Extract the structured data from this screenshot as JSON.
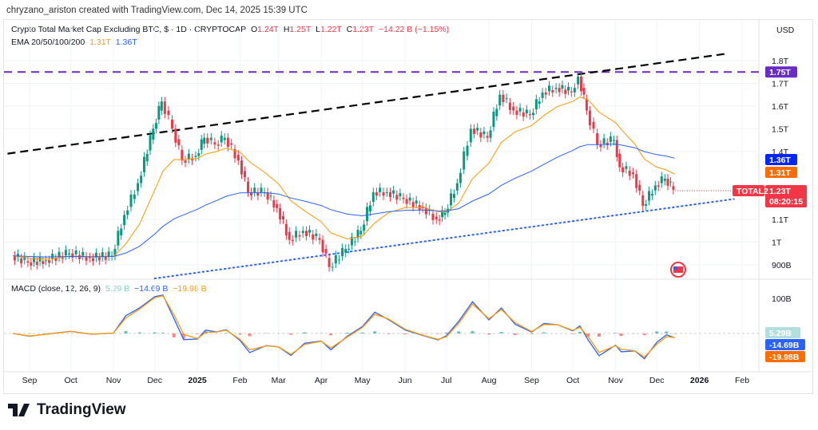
{
  "credit": "chryzano_ariston created with TradingView.com, Dec 14, 2025 15:39 UTC",
  "legend": {
    "symbol": "Crypto Total Market Cap Excluding BTC, $ · 1D · CRYPTOCAP",
    "o_label": "O",
    "o": "1.24T",
    "h_label": "H",
    "h": "1.25T",
    "l_label": "L",
    "l": "1.22T",
    "c_label": "C",
    "c": "1.23T",
    "change": "−14.22 B (−1.15%)",
    "ema_label": "EMA 20/50/100/200",
    "ema1": "1.31T",
    "ema2": "1.36T"
  },
  "macd_legend": {
    "label": "MACD (close, 12, 26, 9)",
    "hist": "5.29 B",
    "macd": "−14.69 B",
    "signal": "−19.98 B"
  },
  "currency": "USD",
  "logo": "TradingView",
  "colors": {
    "up": "#089981",
    "down": "#f23645",
    "ema_short": "#ff9800",
    "ema_long": "#2962ff",
    "resistance": "#6a2cc7",
    "trend_upper": "#000000",
    "trend_lower": "#2962ff"
  },
  "chart_data": [
    {
      "type": "candlestick",
      "symbol": "TOTAL2",
      "scale": "linear",
      "ylim_T": [
        0.85,
        1.85
      ],
      "y_ticks": [
        "1.8T",
        "1.7T",
        "1.6T",
        "1.5T",
        "1.4T",
        "1.1T",
        "1T",
        "900B"
      ],
      "y_tick_values": [
        1.8,
        1.7,
        1.6,
        1.5,
        1.4,
        1.1,
        1.0,
        0.9
      ],
      "x_ticks": [
        "Sep",
        "Oct",
        "Nov",
        "Dec",
        "2025",
        "Feb",
        "Mar",
        "Apr",
        "May",
        "Jun",
        "Jul",
        "Aug",
        "Sep",
        "Oct",
        "Nov",
        "Dec",
        "2026",
        "Feb"
      ],
      "x_tick_dates": [
        "2024-09-01",
        "2024-10-01",
        "2024-11-01",
        "2024-12-01",
        "2025-01-01",
        "2025-02-01",
        "2025-03-01",
        "2025-04-01",
        "2025-05-01",
        "2025-06-01",
        "2025-07-01",
        "2025-08-01",
        "2025-09-01",
        "2025-10-01",
        "2025-11-01",
        "2025-12-01",
        "2026-01-01",
        "2026-02-01"
      ],
      "closes_T": [
        [
          "2024-08-20",
          0.94
        ],
        [
          "2024-09-01",
          0.91
        ],
        [
          "2024-09-14",
          0.92
        ],
        [
          "2024-10-01",
          0.95
        ],
        [
          "2024-10-16",
          0.93
        ],
        [
          "2024-11-01",
          0.94
        ],
        [
          "2024-11-10",
          1.12
        ],
        [
          "2024-11-20",
          1.26
        ],
        [
          "2024-12-01",
          1.5
        ],
        [
          "2024-12-07",
          1.62
        ],
        [
          "2024-12-15",
          1.5
        ],
        [
          "2024-12-22",
          1.36
        ],
        [
          "2025-01-01",
          1.38
        ],
        [
          "2025-01-07",
          1.46
        ],
        [
          "2025-01-15",
          1.43
        ],
        [
          "2025-01-22",
          1.46
        ],
        [
          "2025-02-01",
          1.36
        ],
        [
          "2025-02-08",
          1.22
        ],
        [
          "2025-02-20",
          1.22
        ],
        [
          "2025-03-01",
          1.15
        ],
        [
          "2025-03-10",
          1.01
        ],
        [
          "2025-03-20",
          1.05
        ],
        [
          "2025-04-01",
          1.01
        ],
        [
          "2025-04-08",
          0.89
        ],
        [
          "2025-04-20",
          0.97
        ],
        [
          "2025-05-01",
          1.05
        ],
        [
          "2025-05-10",
          1.22
        ],
        [
          "2025-05-20",
          1.22
        ],
        [
          "2025-06-01",
          1.19
        ],
        [
          "2025-06-15",
          1.15
        ],
        [
          "2025-06-25",
          1.1
        ],
        [
          "2025-07-01",
          1.13
        ],
        [
          "2025-07-10",
          1.26
        ],
        [
          "2025-07-20",
          1.5
        ],
        [
          "2025-08-01",
          1.46
        ],
        [
          "2025-08-10",
          1.65
        ],
        [
          "2025-08-20",
          1.58
        ],
        [
          "2025-09-01",
          1.56
        ],
        [
          "2025-09-10",
          1.66
        ],
        [
          "2025-09-20",
          1.68
        ],
        [
          "2025-10-01",
          1.66
        ],
        [
          "2025-10-06",
          1.73
        ],
        [
          "2025-10-12",
          1.58
        ],
        [
          "2025-10-20",
          1.43
        ],
        [
          "2025-11-01",
          1.45
        ],
        [
          "2025-11-05",
          1.33
        ],
        [
          "2025-11-15",
          1.3
        ],
        [
          "2025-11-22",
          1.16
        ],
        [
          "2025-12-01",
          1.25
        ],
        [
          "2025-12-08",
          1.28
        ],
        [
          "2025-12-14",
          1.23
        ]
      ],
      "lines": {
        "resistance_T": 1.75,
        "upper_trend": [
          [
            "2024-08-16",
            1.39
          ],
          [
            "2026-01-20",
            1.83
          ]
        ],
        "lower_trend": [
          [
            "2024-12-01",
            0.84
          ],
          [
            "2026-01-26",
            1.19
          ]
        ]
      },
      "price_labels": {
        "resistance": "1.75T",
        "ema_long": "1.36T",
        "ema_short": "1.31T",
        "last": "1.23T",
        "countdown": "08:20:15",
        "symbol_tag": "TOTAL2"
      }
    },
    {
      "type": "macd",
      "params": [
        12,
        26,
        9
      ],
      "y_ticks": [
        "100B"
      ],
      "y_tick_values": [
        100
      ],
      "last": {
        "hist": "5.29B",
        "macd": "-14.69B",
        "signal": "-19.98B"
      }
    }
  ]
}
